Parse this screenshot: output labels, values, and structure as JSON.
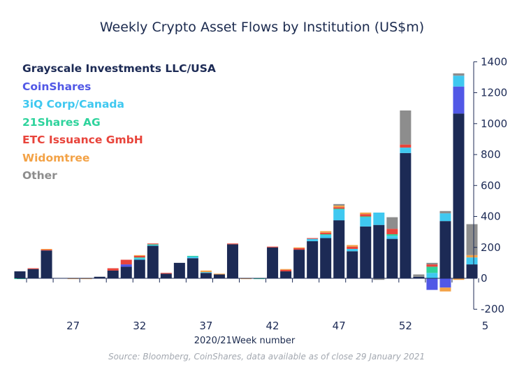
{
  "chart_data": {
    "type": "bar",
    "stacked": true,
    "title": "Weekly Crypto Asset Flows by Institution (US$m)",
    "xlabel": "2020/21Week number",
    "source": "Source: Bloomberg, CoinShares, data available as of close 29 January 2021",
    "ylim": [
      -200,
      1400
    ],
    "yticks": [
      -200,
      0,
      200,
      400,
      600,
      800,
      1000,
      1200,
      1400
    ],
    "y_axis_position": "right",
    "legend_position": "top-left",
    "grid": false,
    "x": [
      23,
      24,
      25,
      26,
      27,
      28,
      29,
      30,
      31,
      32,
      33,
      34,
      35,
      36,
      37,
      38,
      39,
      40,
      41,
      42,
      43,
      44,
      45,
      46,
      47,
      48,
      49,
      50,
      51,
      52,
      53,
      1,
      2,
      3,
      4,
      5
    ],
    "x_tick_labels": [
      "27",
      "32",
      "37",
      "42",
      "47",
      "52",
      "5"
    ],
    "x_tick_positions": [
      27,
      32,
      37,
      42,
      47,
      52,
      5
    ],
    "series": [
      {
        "name": "Grayscale Investments LLC/USA",
        "color": "#1c2a55",
        "values": [
          45,
          60,
          180,
          2,
          0,
          0,
          10,
          50,
          75,
          120,
          210,
          30,
          100,
          130,
          35,
          25,
          220,
          0,
          0,
          200,
          45,
          185,
          240,
          260,
          375,
          175,
          335,
          345,
          255,
          810,
          10,
          0,
          370,
          1065,
          90,
          0
        ]
      },
      {
        "name": "CoinShares",
        "color": "#5158e6",
        "values": [
          0,
          0,
          0,
          0,
          0,
          0,
          0,
          0,
          15,
          0,
          0,
          0,
          0,
          0,
          0,
          0,
          0,
          0,
          0,
          0,
          0,
          0,
          0,
          0,
          0,
          0,
          0,
          0,
          0,
          0,
          0,
          -75,
          -60,
          175,
          0,
          0
        ]
      },
      {
        "name": "3iQ Corp/Canada",
        "color": "#3fc8f0",
        "values": [
          0,
          0,
          0,
          0,
          0,
          0,
          0,
          0,
          0,
          10,
          5,
          0,
          0,
          10,
          5,
          0,
          0,
          0,
          0,
          0,
          0,
          0,
          15,
          20,
          70,
          15,
          60,
          80,
          20,
          35,
          0,
          35,
          50,
          70,
          45,
          0
        ]
      },
      {
        "name": "21Shares AG",
        "color": "#2ed39c",
        "values": [
          -5,
          0,
          0,
          0,
          0,
          0,
          0,
          0,
          0,
          5,
          5,
          0,
          0,
          5,
          0,
          0,
          0,
          0,
          -5,
          0,
          0,
          0,
          0,
          5,
          5,
          0,
          5,
          0,
          10,
          0,
          0,
          40,
          0,
          0,
          0,
          0
        ]
      },
      {
        "name": "ETC Issuance GmbH",
        "color": "#e8443b",
        "values": [
          0,
          5,
          5,
          0,
          0,
          0,
          0,
          15,
          30,
          10,
          5,
          5,
          0,
          0,
          0,
          0,
          5,
          0,
          0,
          5,
          10,
          10,
          5,
          10,
          10,
          15,
          15,
          0,
          35,
          20,
          0,
          15,
          0,
          0,
          0,
          0
        ]
      },
      {
        "name": "Widomtree",
        "color": "#f3a246",
        "values": [
          0,
          0,
          5,
          0,
          -5,
          -5,
          0,
          0,
          0,
          5,
          0,
          0,
          0,
          0,
          10,
          5,
          0,
          -5,
          0,
          0,
          5,
          5,
          0,
          10,
          10,
          10,
          10,
          0,
          0,
          0,
          0,
          0,
          -25,
          -10,
          15,
          0
        ]
      },
      {
        "name": "Other",
        "color": "#8d8d8d",
        "values": [
          0,
          0,
          0,
          0,
          0,
          0,
          0,
          0,
          0,
          0,
          0,
          0,
          0,
          0,
          0,
          0,
          0,
          0,
          0,
          0,
          0,
          0,
          0,
          0,
          10,
          0,
          0,
          -10,
          75,
          220,
          15,
          10,
          15,
          15,
          200,
          0
        ]
      }
    ]
  }
}
